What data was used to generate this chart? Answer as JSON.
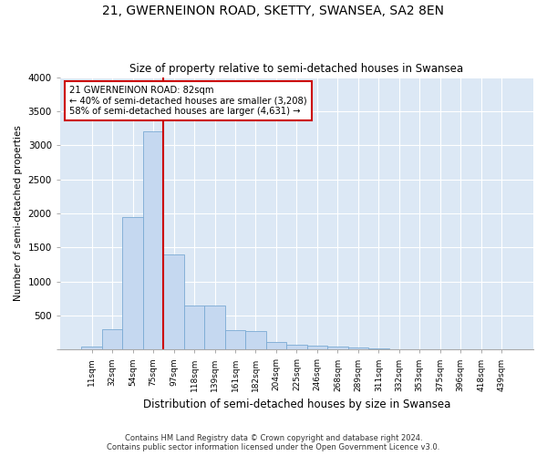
{
  "title": "21, GWERNEINON ROAD, SKETTY, SWANSEA, SA2 8EN",
  "subtitle": "Size of property relative to semi-detached houses in Swansea",
  "xlabel": "Distribution of semi-detached houses by size in Swansea",
  "ylabel": "Number of semi-detached properties",
  "footer_line1": "Contains HM Land Registry data © Crown copyright and database right 2024.",
  "footer_line2": "Contains public sector information licensed under the Open Government Licence v3.0.",
  "annotation_title": "21 GWERNEINON ROAD: 82sqm",
  "annotation_line1": "← 40% of semi-detached houses are smaller (3,208)",
  "annotation_line2": "58% of semi-detached houses are larger (4,631) →",
  "bar_color": "#c5d8f0",
  "bar_edge_color": "#7aaad4",
  "marker_color": "#cc0000",
  "annotation_box_edgecolor": "#cc0000",
  "background_color": "#dce8f5",
  "plot_bg_color": "#dce8f5",
  "categories": [
    "11sqm",
    "32sqm",
    "54sqm",
    "75sqm",
    "97sqm",
    "118sqm",
    "139sqm",
    "161sqm",
    "182sqm",
    "204sqm",
    "225sqm",
    "246sqm",
    "268sqm",
    "289sqm",
    "311sqm",
    "332sqm",
    "353sqm",
    "375sqm",
    "396sqm",
    "418sqm",
    "439sqm"
  ],
  "values": [
    50,
    300,
    1950,
    3200,
    1400,
    650,
    650,
    280,
    270,
    105,
    65,
    55,
    50,
    35,
    15,
    8,
    5,
    4,
    3,
    2,
    2
  ],
  "ylim": [
    0,
    4000
  ],
  "yticks": [
    0,
    500,
    1000,
    1500,
    2000,
    2500,
    3000,
    3500,
    4000
  ],
  "marker_bin_index": 4,
  "figsize": [
    6.0,
    5.0
  ],
  "dpi": 100
}
